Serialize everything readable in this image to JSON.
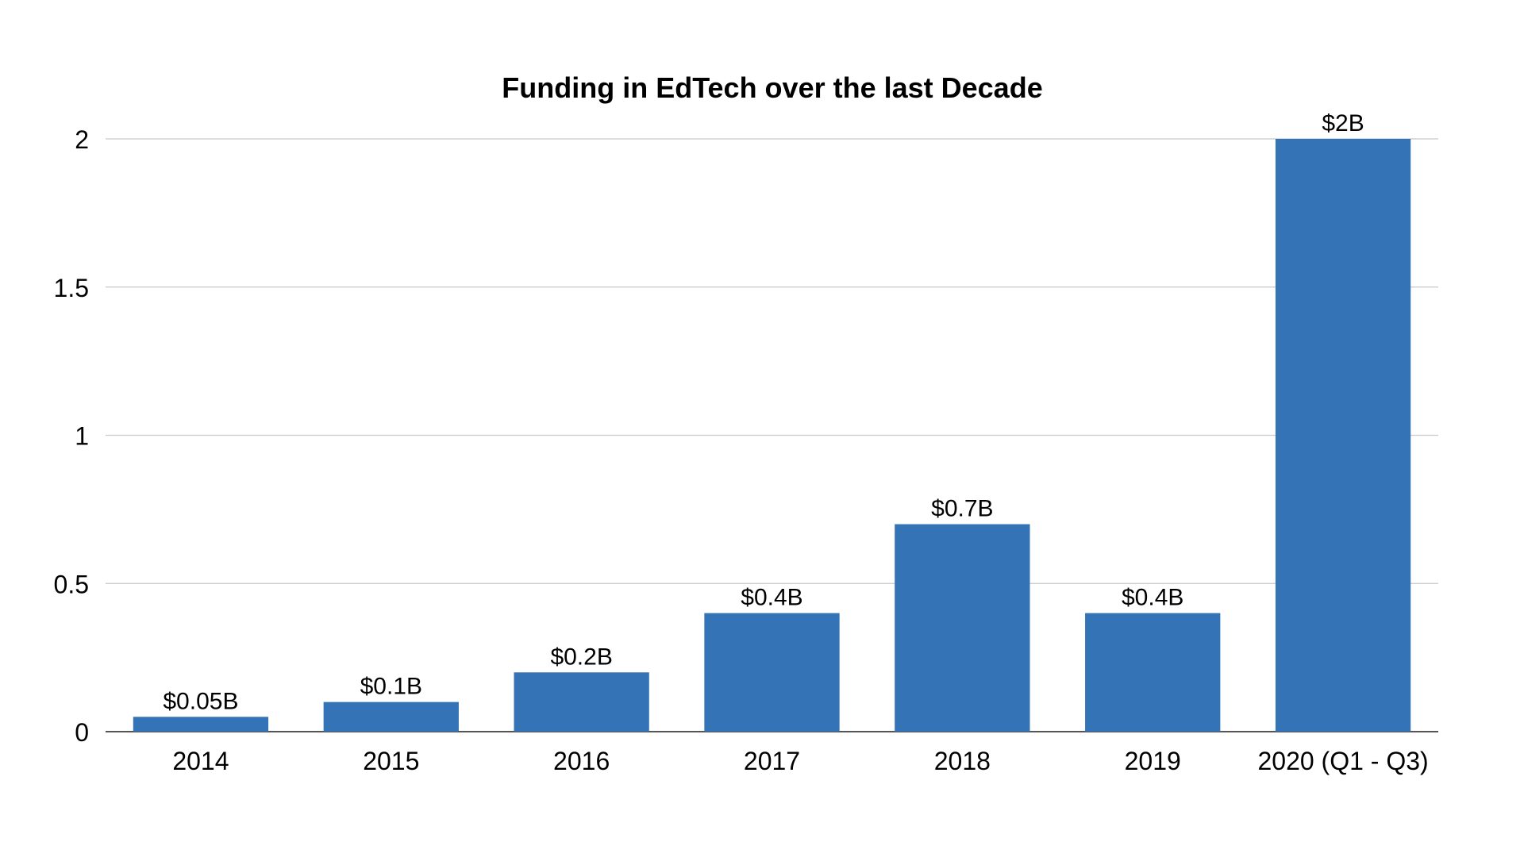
{
  "chart_data": {
    "type": "bar",
    "title": "Funding in EdTech over the last Decade",
    "xlabel": "",
    "ylabel": "",
    "categories": [
      "2014",
      "2015",
      "2016",
      "2017",
      "2018",
      "2019",
      "2020 (Q1 - Q3)"
    ],
    "series": [
      {
        "values": [
          0.05,
          0.1,
          0.2,
          0.4,
          0.7,
          0.4,
          2
        ],
        "data_labels": [
          "$0.05B",
          "$0.1B",
          "$0.2B",
          "$0.4B",
          "$0.7B",
          "$0.4B",
          "$2B"
        ],
        "color": "#3474b6"
      }
    ],
    "yticks": [
      0,
      0.5,
      1,
      1.5,
      2
    ],
    "ytick_labels": [
      "0",
      "0.5",
      "1",
      "1.5",
      "2"
    ],
    "ylim": [
      0,
      2
    ],
    "grid": true,
    "legend": "none"
  },
  "colors": {
    "bar": "#3474b6",
    "grid": "#c8c8c8",
    "axis": "#555555",
    "text": "#000000",
    "background": "#ffffff"
  }
}
